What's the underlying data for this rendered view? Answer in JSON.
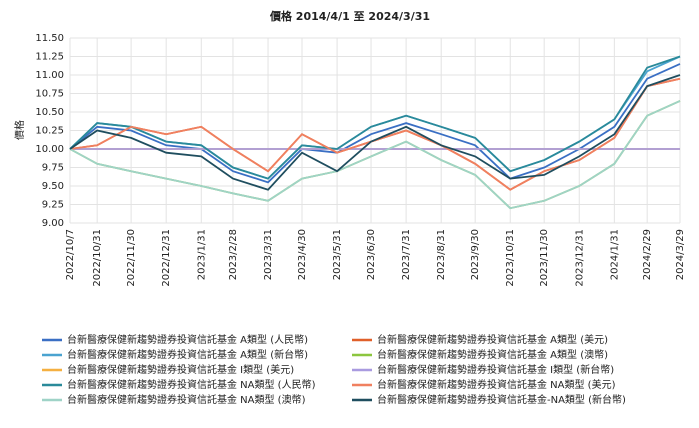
{
  "chart_data": {
    "type": "line",
    "title": "價格 2014/4/1 至 2024/3/31",
    "y_label": "價格",
    "x": [
      "2022/10/7",
      "2022/10/31",
      "2022/11/30",
      "2022/12/31",
      "2023/1/31",
      "2023/2/28",
      "2023/3/31",
      "2023/4/30",
      "2023/5/31",
      "2023/6/30",
      "2023/7/31",
      "2023/8/31",
      "2023/9/30",
      "2023/10/31",
      "2023/11/30",
      "2023/12/31",
      "2024/1/31",
      "2024/2/29",
      "2024/3/29"
    ],
    "xticks": [
      "2022/10/7",
      "2022/10/31",
      "2022/11/30",
      "2022/12/31",
      "2023/1/31",
      "2023/2/28",
      "2023/3/31",
      "2023/4/30",
      "2023/5/31",
      "2023/6/30",
      "2023/7/31",
      "2023/8/31",
      "2023/9/30",
      "2023/10/31",
      "2023/11/30",
      "2023/12/31",
      "2024/1/31",
      "2024/2/29",
      "2024/3/29"
    ],
    "ylim": [
      9,
      11.5
    ],
    "yticks": [
      {
        "value": 9,
        "label": "9.00"
      },
      {
        "value": 9.25,
        "label": "9.25"
      },
      {
        "value": 9.5,
        "label": "9.50"
      },
      {
        "value": 9.75,
        "label": "9.75"
      },
      {
        "value": 10,
        "label": "10.00"
      },
      {
        "value": 10.25,
        "label": "10.25"
      },
      {
        "value": 10.5,
        "label": "10.50"
      },
      {
        "value": 10.75,
        "label": "10.75"
      },
      {
        "value": 11,
        "label": "11.00"
      },
      {
        "value": 11.25,
        "label": "11.25"
      },
      {
        "value": 11.5,
        "label": "11.50"
      }
    ],
    "grid": true,
    "series": [
      {
        "name": "台新醫療保健新趨勢證券投資信託基金 A類型 (人民幣)",
        "color": "#3a6fc4",
        "values": [
          10.0,
          10.3,
          10.25,
          10.05,
          10.0,
          9.7,
          9.55,
          10.0,
          9.95,
          10.2,
          10.35,
          10.2,
          10.05,
          9.6,
          9.75,
          10.0,
          10.3,
          10.95,
          11.15
        ]
      },
      {
        "name": "台新醫療保健新趨勢證券投資信託基金 A類型 (美元)",
        "color": "#e0602a",
        "values": [
          10.0,
          10.05,
          10.3,
          10.2,
          10.3,
          10.0,
          9.7,
          10.2,
          9.95,
          10.1,
          10.25,
          10.05,
          9.8,
          9.45,
          9.7,
          9.85,
          10.15,
          10.85,
          10.95
        ]
      },
      {
        "name": "台新醫療保健新趨勢證券投資信託基金 A類型 (新台幣)",
        "color": "#4aa3d0",
        "values": [
          10.0,
          10.35,
          10.3,
          10.1,
          10.05,
          9.75,
          9.6,
          10.05,
          10.0,
          10.3,
          10.45,
          10.3,
          10.15,
          9.7,
          9.85,
          10.1,
          10.4,
          11.05,
          11.25
        ]
      },
      {
        "name": "台新醫療保健新趨勢證券投資信託基金 A類型 (澳幣)",
        "color": "#8cc63f",
        "values": [
          10.0,
          9.8,
          9.7,
          9.6,
          9.5,
          9.4,
          9.3,
          9.6,
          9.7,
          9.9,
          10.1,
          9.85,
          9.65,
          9.2,
          9.3,
          9.5,
          9.8,
          10.45,
          10.65
        ]
      },
      {
        "name": "台新醫療保健新趨勢證券投資信託基金 I類型 (美元)",
        "color": "#f5b041",
        "values": [
          10.0,
          10.0,
          10.0,
          10.0,
          10.0,
          10.0,
          10.0,
          10.0,
          10.0,
          10.0,
          10.0,
          10.0,
          10.0,
          10.0,
          10.0,
          10.0,
          10.0,
          10.0,
          10.0
        ]
      },
      {
        "name": "台新醫療保健新趨勢證券投資信託基金 I類型 (新台幣)",
        "color": "#a99be0",
        "values": [
          10.0,
          10.0,
          10.0,
          10.0,
          10.0,
          10.0,
          10.0,
          10.0,
          10.0,
          10.0,
          10.0,
          10.0,
          10.0,
          10.0,
          10.0,
          10.0,
          10.0,
          10.0,
          10.0
        ]
      },
      {
        "name": "台新醫療保健新趨勢證券投資信託基金 NA類型 (人民幣)",
        "color": "#2a8a9a",
        "values": [
          10.0,
          10.35,
          10.3,
          10.1,
          10.05,
          9.75,
          9.6,
          10.05,
          10.0,
          10.3,
          10.45,
          10.3,
          10.15,
          9.7,
          9.85,
          10.1,
          10.4,
          11.1,
          11.25
        ]
      },
      {
        "name": "台新醫療保健新趨勢證券投資信託基金 NA類型 (美元)",
        "color": "#f08060",
        "values": [
          10.0,
          10.05,
          10.3,
          10.2,
          10.3,
          10.0,
          9.7,
          10.2,
          9.95,
          10.1,
          10.25,
          10.05,
          9.8,
          9.45,
          9.7,
          9.85,
          10.15,
          10.85,
          10.95
        ]
      },
      {
        "name": "台新醫療保健新趨勢證券投資信託基金 NA類型 (澳幣)",
        "color": "#9fd3c7",
        "values": [
          10.0,
          9.8,
          9.7,
          9.6,
          9.5,
          9.4,
          9.3,
          9.6,
          9.7,
          9.9,
          10.1,
          9.85,
          9.65,
          9.2,
          9.3,
          9.5,
          9.8,
          10.45,
          10.65
        ]
      },
      {
        "name": "台新醫療保健新趨勢證券投資信託基金-NA類型 (新台幣)",
        "color": "#1f4e5f",
        "values": [
          10.0,
          10.25,
          10.15,
          9.95,
          9.9,
          9.6,
          9.45,
          9.95,
          9.7,
          10.1,
          10.3,
          10.05,
          9.9,
          9.6,
          9.65,
          9.9,
          10.2,
          10.85,
          11.0
        ]
      }
    ]
  }
}
